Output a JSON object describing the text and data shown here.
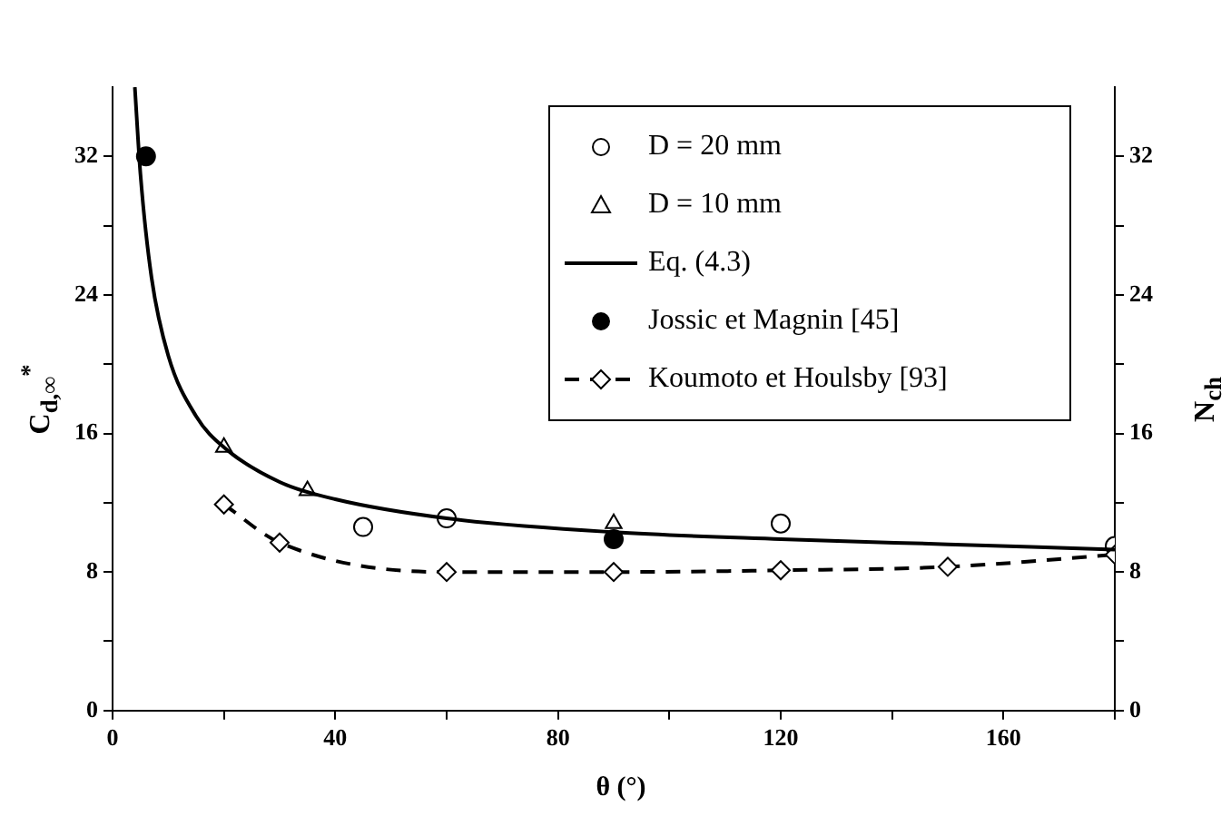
{
  "chart_data": {
    "type": "scatter",
    "xlabel": "θ (°)",
    "ylabel": "C$_{d,∞}$$^{*}$",
    "y2label": "N$_{ch}$",
    "xlim": [
      0,
      180
    ],
    "xticks": [
      0,
      {
        "value": 20,
        "label": null
      },
      40,
      {
        "value": 60,
        "label": null
      },
      80,
      {
        "value": 100,
        "label": null
      },
      120,
      {
        "value": 140,
        "label": null
      },
      160,
      {
        "value": 180,
        "label": null
      }
    ],
    "ylim": [
      0,
      36
    ],
    "yticks": [
      0,
      {
        "value": 4,
        "label": null
      },
      8,
      {
        "value": 12,
        "label": null
      },
      16,
      {
        "value": 20,
        "label": null
      },
      24,
      {
        "value": 28,
        "label": null
      },
      32
    ],
    "y2lim": [
      0,
      36
    ],
    "y2ticks": [
      0,
      {
        "value": 4,
        "label": null
      },
      8,
      {
        "value": 12,
        "label": null
      },
      16,
      {
        "value": 20,
        "label": null
      },
      24,
      {
        "value": 28,
        "label": null
      },
      32
    ],
    "grid": false,
    "legend": "top right",
    "series": [
      {
        "name": "D = 20 mm",
        "type": "scatter",
        "marker": "circle",
        "color": "#ffffff",
        "x": [
          45,
          60,
          120,
          180
        ],
        "values": [
          10.6,
          11.1,
          10.8,
          9.5
        ]
      },
      {
        "name": "D = 10 mm",
        "type": "scatter",
        "marker": "triangle",
        "color": "#ffffff",
        "x": [
          20,
          35,
          90
        ],
        "values": [
          15.2,
          12.7,
          10.8
        ]
      },
      {
        "name": "Eq. (4.3)",
        "type": "line",
        "marker": "none",
        "line_style": "solid",
        "color": "#000000",
        "x": [
          4,
          5,
          7,
          10,
          15,
          20,
          30,
          40,
          60,
          90,
          120,
          150,
          180
        ],
        "values": [
          36,
          31,
          25,
          20.5,
          17,
          15.2,
          13.2,
          12.2,
          11.1,
          10.3,
          9.9,
          9.6,
          9.3
        ]
      },
      {
        "name": "Jossic et Magnin [45]",
        "type": "scatter",
        "marker": "circle",
        "color": "#000000",
        "x": [
          6,
          90
        ],
        "values": [
          32,
          9.9
        ]
      },
      {
        "name": "Koumoto et Houlsby [93]",
        "type": "line",
        "marker": "diamond",
        "line_style": "dashed",
        "color": "#000000",
        "x": [
          20,
          30,
          60,
          90,
          120,
          150,
          180
        ],
        "values": [
          11.9,
          9.7,
          8,
          8,
          8.1,
          8.3,
          9
        ]
      }
    ]
  }
}
